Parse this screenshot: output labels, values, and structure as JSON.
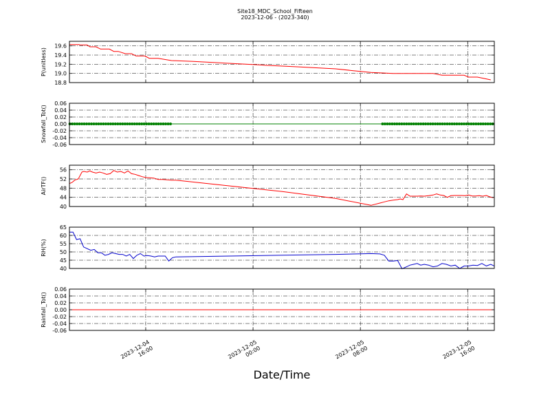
{
  "figure": {
    "title_line1": "Site18_MDC_School_Fifteen",
    "title_line2": "2023-12-06 - (2023-340)",
    "xlabel": "Date/Time"
  },
  "chart_data": [
    {
      "type": "line",
      "ylabel": "P(unitless)",
      "ylim": [
        18.8,
        19.7
      ],
      "yticks": [
        "19.6",
        "19.4",
        "19.2",
        "19.0",
        "18.8"
      ],
      "ytick_values": [
        19.6,
        19.4,
        19.2,
        19.0,
        18.8
      ],
      "grid": true,
      "color": "#ff0000",
      "x": [
        6.0,
        7.1,
        7.2,
        8.0,
        8.3,
        9.0,
        9.2,
        9.5,
        10.5,
        11.0,
        11.5,
        12.3,
        12.5,
        13.0,
        13.5,
        14.5,
        15.0,
        16.0,
        17.5,
        20.0,
        24.0,
        28.0,
        32.0,
        36.0,
        38.0,
        40.0,
        42.5,
        43.0,
        43.5,
        46.0,
        46.5,
        47.0,
        48.0,
        50.0,
        50.5,
        51.0,
        52.0,
        53.5
      ],
      "y": [
        19.63,
        19.63,
        19.62,
        19.62,
        19.58,
        19.58,
        19.56,
        19.53,
        19.53,
        19.48,
        19.48,
        19.43,
        19.43,
        19.43,
        19.38,
        19.38,
        19.33,
        19.33,
        19.28,
        19.26,
        19.22,
        19.18,
        19.14,
        19.1,
        19.06,
        19.02,
        19.0,
        19.0,
        19.0,
        19.0,
        19.0,
        19.0,
        18.96,
        18.96,
        18.96,
        18.92,
        18.92,
        18.86
      ]
    },
    {
      "type": "scatter",
      "ylabel": "Snowfall_Tot()",
      "ylim": [
        -0.06,
        0.06
      ],
      "yticks": [
        "0.06",
        "0.04",
        "0.02",
        "0.00",
        "-0.02",
        "-0.04",
        "-0.06"
      ],
      "ytick_values": [
        0.06,
        0.04,
        0.02,
        0.0,
        -0.02,
        -0.04,
        -0.06
      ],
      "grid": true,
      "color": "#008000",
      "line_x": [
        6.0,
        53.9
      ],
      "line_y": [
        0.0,
        0.0
      ],
      "segments": [
        {
          "x_start": 6.05,
          "x_end": 17.6,
          "step": 0.27,
          "y": 0.0
        },
        {
          "x_start": 41.3,
          "x_end": 53.9,
          "step": 0.27,
          "y": 0.0
        }
      ]
    },
    {
      "type": "line",
      "ylabel": "AirTF()",
      "ylim": [
        40,
        58
      ],
      "yticks": [
        "56",
        "52",
        "48",
        "44",
        "40"
      ],
      "ytick_values": [
        56,
        52,
        48,
        44,
        40
      ],
      "grid": true,
      "color": "#ff0000",
      "x": [
        6.0,
        6.3,
        6.6,
        7.0,
        7.4,
        7.6,
        8.0,
        8.3,
        8.6,
        9.0,
        9.4,
        9.8,
        10.2,
        10.6,
        11.0,
        11.4,
        11.8,
        12.2,
        12.6,
        13.0,
        13.4,
        13.8,
        14.2,
        14.6,
        15.0,
        15.5,
        16.0,
        16.5,
        17.0,
        17.5,
        18.0,
        24.0,
        30.0,
        36.0,
        40.0,
        41.0,
        41.5,
        42.0,
        42.5,
        43.0,
        43.3,
        43.6,
        44.0,
        44.4,
        44.8,
        45.2,
        45.6,
        46.0,
        46.5,
        47.0,
        47.4,
        47.8,
        48.2,
        48.6,
        49.0,
        49.4,
        49.8,
        50.2,
        50.6,
        51.0,
        51.4,
        51.8,
        52.2,
        52.6,
        53.0,
        53.4,
        53.8
      ],
      "y": [
        50.0,
        50.5,
        51.5,
        52.0,
        55.0,
        55.3,
        55.0,
        55.5,
        55.0,
        54.6,
        55.0,
        54.6,
        54.0,
        54.3,
        55.7,
        55.0,
        55.3,
        54.6,
        55.5,
        54.3,
        54.0,
        53.5,
        53.0,
        52.6,
        52.5,
        52.4,
        51.8,
        51.8,
        51.6,
        51.5,
        51.5,
        49.0,
        46.5,
        43.5,
        40.5,
        41.5,
        42.0,
        42.5,
        42.8,
        43.0,
        43.3,
        43.0,
        45.5,
        44.5,
        44.5,
        44.5,
        44.6,
        44.5,
        44.7,
        45.0,
        45.5,
        45.0,
        44.8,
        44.0,
        44.7,
        44.8,
        44.8,
        44.8,
        44.7,
        45.0,
        44.6,
        44.6,
        44.7,
        44.5,
        44.8,
        44.2,
        43.8
      ]
    },
    {
      "type": "line",
      "ylabel": "RH(%)",
      "ylim": [
        40,
        65
      ],
      "yticks": [
        "65",
        "60",
        "55",
        "50",
        "45",
        "40"
      ],
      "ytick_values": [
        65,
        60,
        55,
        50,
        45,
        40
      ],
      "grid": true,
      "color": "#0000cc",
      "x": [
        6.0,
        6.4,
        6.8,
        7.2,
        7.6,
        8.0,
        8.4,
        8.8,
        9.2,
        9.6,
        10.0,
        10.4,
        10.8,
        11.2,
        11.6,
        12.0,
        12.4,
        12.8,
        13.2,
        13.6,
        14.0,
        14.4,
        14.8,
        15.2,
        15.6,
        16.0,
        16.4,
        16.8,
        17.2,
        17.6,
        18.0,
        24.0,
        30.0,
        36.0,
        40.0,
        41.0,
        41.5,
        42.0,
        42.5,
        43.0,
        43.5,
        44.0,
        44.4,
        44.8,
        45.2,
        45.6,
        46.0,
        46.5,
        47.0,
        47.5,
        48.0,
        48.5,
        49.0,
        49.5,
        50.0,
        50.5,
        51.0,
        51.5,
        52.0,
        52.5,
        53.0,
        53.5,
        53.9
      ],
      "y": [
        62.0,
        62.0,
        57.5,
        58.0,
        53.0,
        52.0,
        51.0,
        51.5,
        49.5,
        49.5,
        48.0,
        48.5,
        49.5,
        49.0,
        48.5,
        48.5,
        47.5,
        48.5,
        46.0,
        48.0,
        49.0,
        47.5,
        47.8,
        47.5,
        47.0,
        47.5,
        47.5,
        47.5,
        44.5,
        46.5,
        47.0,
        47.5,
        48.0,
        48.5,
        49.0,
        48.8,
        48.0,
        44.5,
        44.5,
        44.8,
        39.8,
        41.0,
        42.0,
        42.5,
        43.0,
        42.0,
        42.5,
        42.0,
        41.0,
        41.5,
        43.0,
        42.5,
        41.5,
        42.0,
        40.0,
        41.5,
        41.5,
        42.0,
        41.8,
        43.0,
        41.5,
        42.5,
        41.5
      ]
    },
    {
      "type": "line",
      "ylabel": "Rainfall_Tot()",
      "ylim": [
        -0.06,
        0.06
      ],
      "yticks": [
        "0.06",
        "0.04",
        "0.02",
        "0.00",
        "-0.02",
        "-0.04",
        "-0.06"
      ],
      "ytick_values": [
        0.06,
        0.04,
        0.02,
        0.0,
        -0.02,
        -0.04,
        -0.06
      ],
      "grid": true,
      "color": "#ff0000",
      "x": [
        6.0,
        53.9
      ],
      "y": [
        0.0,
        0.0
      ]
    }
  ],
  "xaxis": {
    "xlim": [
      6.0,
      53.9
    ],
    "major_ticks": [
      {
        "x": 14.6,
        "line1": "2023-12-04",
        "line2": "16:00"
      },
      {
        "x": 26.7,
        "line1": "2023-12-05",
        "line2": "00:00"
      },
      {
        "x": 38.8,
        "line1": "2023-12-05",
        "line2": "08:00"
      },
      {
        "x": 50.9,
        "line1": "2023-12-05",
        "line2": "16:00"
      }
    ]
  }
}
